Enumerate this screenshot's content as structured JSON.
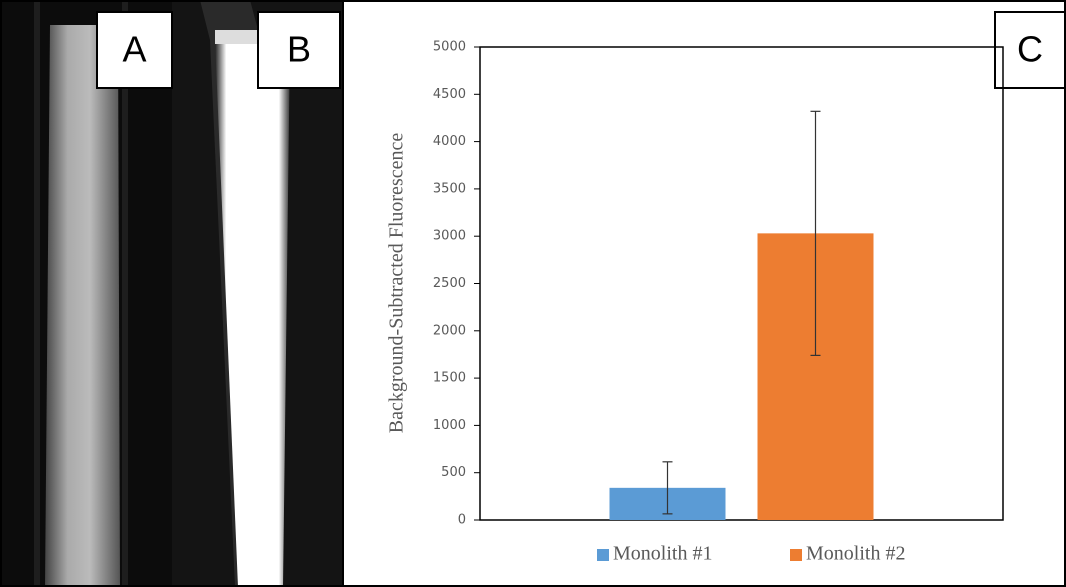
{
  "panel_labels": [
    "A",
    "B",
    "C"
  ],
  "chart_data": {
    "type": "bar",
    "y_label": "Background-Subtracted Fluorescence",
    "categories": [
      null
    ],
    "series": [
      {
        "name": "Monolith #1",
        "color": "#5b9bd5",
        "values": [
          340
        ],
        "errors": [
          275
        ]
      },
      {
        "name": "Monolith #2",
        "color": "#ed7d31",
        "values": [
          3030
        ],
        "errors": [
          1290
        ]
      }
    ],
    "ylim": [
      0,
      5000
    ],
    "yticks": [
      0,
      500,
      1000,
      1500,
      2000,
      2500,
      3000,
      3500,
      4000,
      4500,
      5000
    ],
    "grid": false,
    "legend": "bottom"
  }
}
